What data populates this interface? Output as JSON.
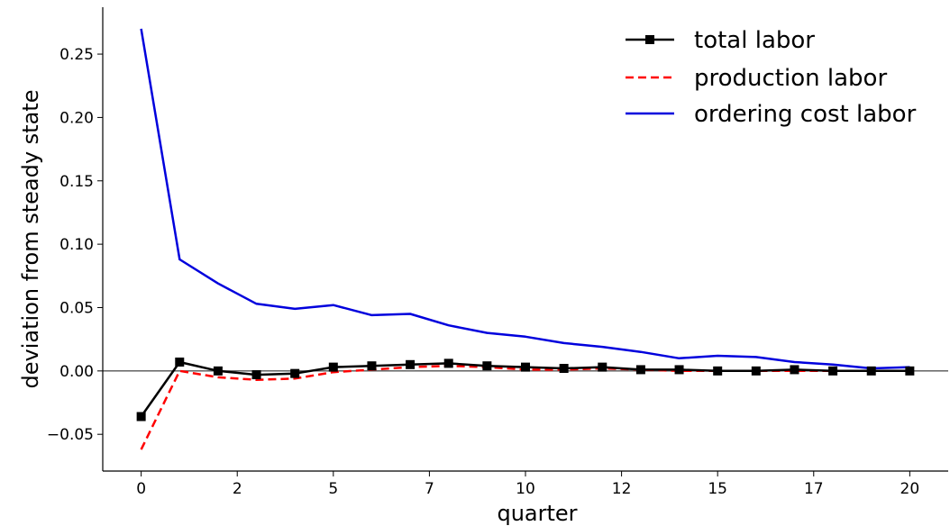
{
  "chart_data": {
    "type": "line",
    "title": "",
    "xlabel": "quarter",
    "ylabel": "deviation from steady state",
    "xlim": [
      -1,
      21
    ],
    "ylim": [
      -0.079,
      0.287
    ],
    "xticks": [
      0,
      2.5,
      5,
      7.5,
      10,
      12.5,
      15,
      17.5,
      20
    ],
    "xtick_labels": [
      "0",
      "2",
      "5",
      "7",
      "10",
      "12",
      "15",
      "17",
      "20"
    ],
    "yticks": [
      -0.05,
      0.0,
      0.05,
      0.1,
      0.15,
      0.2,
      0.25
    ],
    "ytick_labels": [
      "−0.05",
      "0.00",
      "0.05",
      "0.10",
      "0.15",
      "0.20",
      "0.25"
    ],
    "grid": false,
    "legend_position": "top-right",
    "hline_y": 0,
    "x": [
      0,
      1,
      2,
      3,
      4,
      5,
      6,
      7,
      8,
      9,
      10,
      11,
      12,
      13,
      14,
      15,
      16,
      17,
      18,
      19,
      20
    ],
    "series": [
      {
        "name": "total labor",
        "style": "solid-square-markers",
        "color": "#000000",
        "values": [
          -0.036,
          0.007,
          0.0,
          -0.003,
          -0.002,
          0.003,
          0.004,
          0.005,
          0.006,
          0.004,
          0.003,
          0.002,
          0.003,
          0.001,
          0.001,
          0.0,
          0.0,
          0.001,
          0.0,
          0.0,
          0.0
        ]
      },
      {
        "name": "production labor",
        "style": "dashed",
        "color": "#ff0000",
        "values": [
          -0.062,
          0.0,
          -0.005,
          -0.007,
          -0.006,
          -0.001,
          0.001,
          0.003,
          0.004,
          0.003,
          0.001,
          0.001,
          0.002,
          0.001,
          0.0,
          0.0,
          0.0,
          0.0,
          0.0,
          0.0,
          0.0
        ]
      },
      {
        "name": "ordering cost labor",
        "style": "solid",
        "color": "#0000dd",
        "values": [
          0.27,
          0.088,
          0.069,
          0.053,
          0.049,
          0.052,
          0.044,
          0.045,
          0.036,
          0.03,
          0.027,
          0.022,
          0.019,
          0.015,
          0.01,
          0.012,
          0.011,
          0.007,
          0.005,
          0.002,
          0.003
        ]
      }
    ]
  }
}
